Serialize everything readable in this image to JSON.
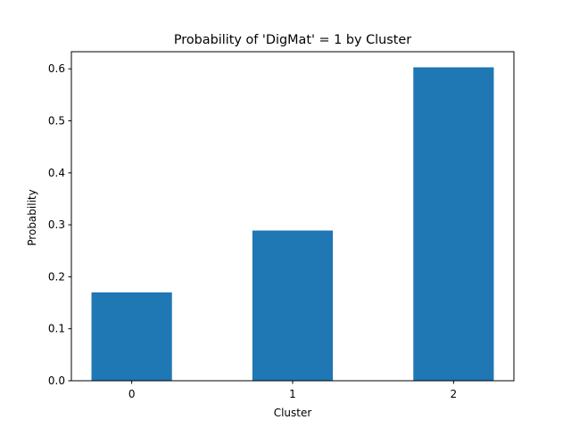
{
  "chart_data": {
    "type": "bar",
    "title": "Probability of 'DigMat' = 1 by Cluster",
    "xlabel": "Cluster",
    "ylabel": "Probability",
    "categories": [
      "0",
      "1",
      "2"
    ],
    "values": [
      0.17,
      0.289,
      0.603
    ],
    "ylim": [
      0,
      0.633
    ],
    "yticks": [
      0.0,
      0.1,
      0.2,
      0.3,
      0.4,
      0.5,
      0.6
    ],
    "ytick_labels": [
      "0.0",
      "0.1",
      "0.2",
      "0.3",
      "0.4",
      "0.5",
      "0.6"
    ],
    "bar_color": "#1f77b4",
    "grid": false,
    "legend": "none"
  }
}
